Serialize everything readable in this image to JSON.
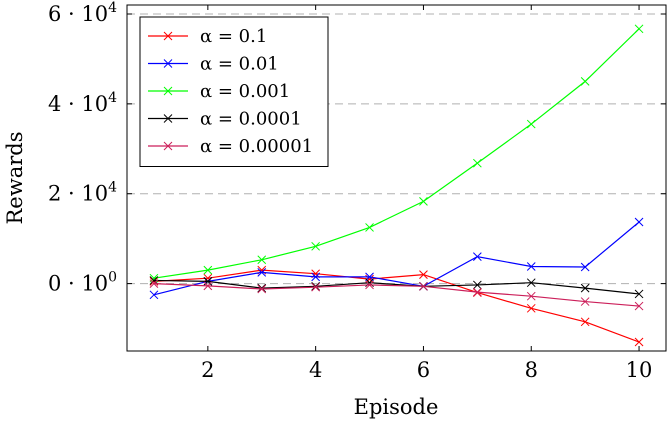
{
  "chart_data": {
    "type": "line",
    "title": "",
    "xlabel": "Episode",
    "ylabel": "Rewards",
    "x": [
      1,
      2,
      3,
      4,
      5,
      6,
      7,
      8,
      9,
      10
    ],
    "xlim": [
      0.5,
      10.5
    ],
    "ylim": [
      -15000,
      62000
    ],
    "x_ticks": [
      2,
      4,
      6,
      8,
      10
    ],
    "x_tick_labels": [
      "2",
      "4",
      "6",
      "8",
      "10"
    ],
    "y_ticks": [
      0,
      20000,
      40000,
      60000
    ],
    "y_tick_labels": [
      {
        "base": "0 · 10",
        "exp": "0"
      },
      {
        "base": "2 · 10",
        "exp": "4"
      },
      {
        "base": "4 · 10",
        "exp": "4"
      },
      {
        "base": "6 · 10",
        "exp": "4"
      }
    ],
    "grid": "horizontal dashed",
    "legend_position": "top-left",
    "marker": "cross",
    "series": [
      {
        "name": "α = 0.1",
        "color": "#ff0000",
        "values": [
          500,
          1200,
          3000,
          2200,
          1000,
          2000,
          -2000,
          -5500,
          -8500,
          -13000
        ]
      },
      {
        "name": "α = 0.01",
        "color": "#0000ff",
        "values": [
          -2500,
          500,
          2500,
          1500,
          1500,
          -600,
          6000,
          3800,
          3700,
          13700
        ]
      },
      {
        "name": "α = 0.001",
        "color": "#00ff00",
        "values": [
          1200,
          3000,
          5300,
          8300,
          12500,
          18300,
          26800,
          35500,
          45000,
          56700
        ]
      },
      {
        "name": "α = 0.0001",
        "color": "#000000",
        "values": [
          700,
          500,
          -1000,
          -600,
          200,
          -600,
          -300,
          200,
          -1000,
          -2300
        ]
      },
      {
        "name": "α = 0.00001",
        "color": "#cc1f5a",
        "values": [
          0,
          -500,
          -1200,
          -800,
          -300,
          -600,
          -1900,
          -2800,
          -4000,
          -5000
        ]
      }
    ]
  }
}
